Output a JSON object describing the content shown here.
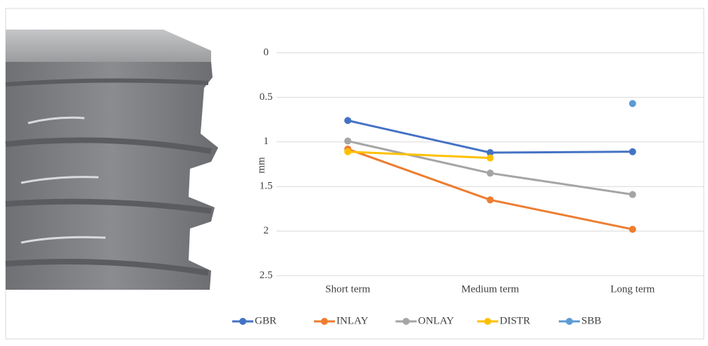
{
  "chart_data": {
    "type": "line",
    "y_label": "mm",
    "categories": [
      "Short term",
      "Medium term",
      "Long term"
    ],
    "series": [
      {
        "name": "GBR",
        "color": "#4472c4",
        "values": [
          0.76,
          1.12,
          1.11
        ]
      },
      {
        "name": "INLAY",
        "color": "#ed7d31",
        "values": [
          1.08,
          1.65,
          1.98
        ]
      },
      {
        "name": "ONLAY",
        "color": "#a5a5a5",
        "values": [
          0.99,
          1.35,
          1.59
        ]
      },
      {
        "name": "DISTR",
        "color": "#ffc000",
        "values": [
          1.11,
          1.18,
          null
        ]
      },
      {
        "name": "SBB",
        "color": "#5b9bd5",
        "values": [
          null,
          null,
          0.57
        ]
      }
    ],
    "ylim": [
      0,
      2.5
    ],
    "y_inverted": true,
    "yticks": [
      0,
      0.5,
      1,
      1.5,
      2,
      2.5
    ],
    "grid": true,
    "legend": "bottom"
  }
}
